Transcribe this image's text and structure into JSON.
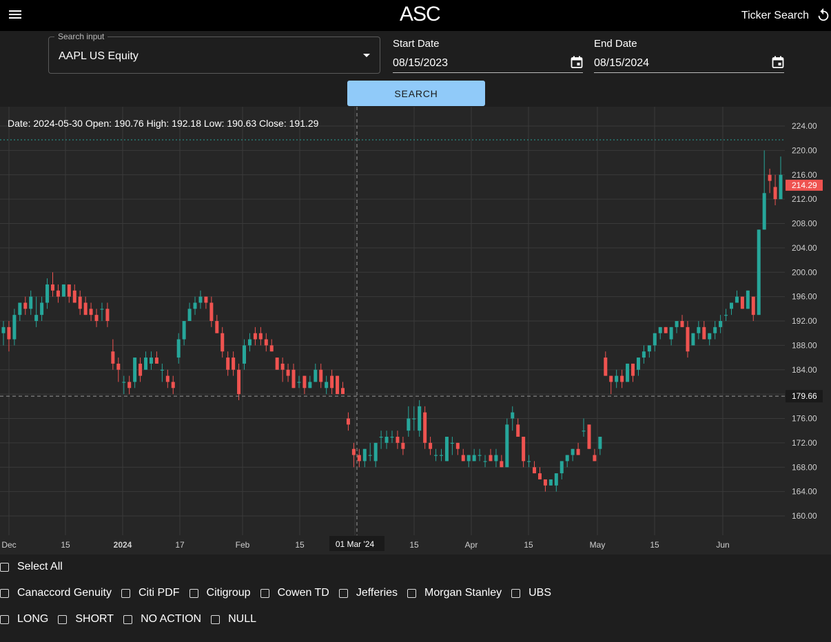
{
  "header": {
    "logo": "ASC",
    "ticker_search": "Ticker Search"
  },
  "form": {
    "search_legend": "Search input",
    "search_value": "AAPL US Equity",
    "start_label": "Start Date",
    "start_value": "08/15/2023",
    "end_label": "End Date",
    "end_value": "08/15/2024",
    "search_button": "SEARCH"
  },
  "chart_data": {
    "type": "candlestick",
    "ohlc_readout": "Date: 2024-05-30 Open: 190.76 High: 192.18 Low: 190.63 Close: 191.29",
    "ylim": [
      158,
      226
    ],
    "y_ticks": [
      "224.00",
      "220.00",
      "216.00",
      "212.00",
      "208.00",
      "204.00",
      "200.00",
      "196.00",
      "192.00",
      "188.00",
      "184.00",
      "180.00",
      "176.00",
      "172.00",
      "168.00",
      "164.00",
      "160.00"
    ],
    "x_ticks": [
      "Dec",
      "15",
      "2024",
      "17",
      "Feb",
      "15",
      "01 Mar '24",
      "15",
      "Apr",
      "15",
      "May",
      "15",
      "Jun"
    ],
    "crosshair_date_label": "01 Mar '24",
    "crosshair_price": "179.66",
    "last_price": "214.29",
    "colors": {
      "up": "#26a69a",
      "down": "#ef5350",
      "price_badge": "#ef5350"
    },
    "candles": [
      {
        "o": 190,
        "h": 192,
        "l": 188,
        "c": 191
      },
      {
        "o": 191,
        "h": 192,
        "l": 187,
        "c": 189
      },
      {
        "o": 189,
        "h": 194,
        "l": 188,
        "c": 193
      },
      {
        "o": 193,
        "h": 195,
        "l": 192,
        "c": 195
      },
      {
        "o": 195,
        "h": 196,
        "l": 193,
        "c": 194
      },
      {
        "o": 194,
        "h": 197,
        "l": 193,
        "c": 196
      },
      {
        "o": 192,
        "h": 196,
        "l": 191,
        "c": 193
      },
      {
        "o": 193,
        "h": 196,
        "l": 192,
        "c": 195
      },
      {
        "o": 195,
        "h": 199,
        "l": 194,
        "c": 198
      },
      {
        "o": 198,
        "h": 200,
        "l": 196,
        "c": 197
      },
      {
        "o": 197,
        "h": 198,
        "l": 195,
        "c": 196
      },
      {
        "o": 196,
        "h": 198,
        "l": 196,
        "c": 198
      },
      {
        "o": 198,
        "h": 198,
        "l": 195,
        "c": 196
      },
      {
        "o": 197,
        "h": 198,
        "l": 195,
        "c": 195
      },
      {
        "o": 196,
        "h": 197,
        "l": 193,
        "c": 194
      },
      {
        "o": 195,
        "h": 196,
        "l": 193,
        "c": 193
      },
      {
        "o": 194,
        "h": 195,
        "l": 192,
        "c": 193
      },
      {
        "o": 193,
        "h": 194,
        "l": 191,
        "c": 192
      },
      {
        "o": 194,
        "h": 195,
        "l": 192,
        "c": 194
      },
      {
        "o": 194,
        "h": 195,
        "l": 191,
        "c": 192
      },
      {
        "o": 187,
        "h": 189,
        "l": 184,
        "c": 185
      },
      {
        "o": 185,
        "h": 186,
        "l": 182,
        "c": 184
      },
      {
        "o": 182,
        "h": 183,
        "l": 180,
        "c": 182
      },
      {
        "o": 182,
        "h": 183,
        "l": 180,
        "c": 181
      },
      {
        "o": 182,
        "h": 186,
        "l": 181,
        "c": 186
      },
      {
        "o": 185,
        "h": 186,
        "l": 182,
        "c": 183
      },
      {
        "o": 184,
        "h": 187,
        "l": 184,
        "c": 186
      },
      {
        "o": 185,
        "h": 187,
        "l": 184,
        "c": 186
      },
      {
        "o": 186,
        "h": 187,
        "l": 185,
        "c": 185
      },
      {
        "o": 184,
        "h": 185,
        "l": 182,
        "c": 184
      },
      {
        "o": 183,
        "h": 184,
        "l": 181,
        "c": 182
      },
      {
        "o": 182,
        "h": 183,
        "l": 180,
        "c": 181
      },
      {
        "o": 186,
        "h": 190,
        "l": 185,
        "c": 189
      },
      {
        "o": 189,
        "h": 192,
        "l": 188,
        "c": 192
      },
      {
        "o": 192,
        "h": 195,
        "l": 192,
        "c": 194
      },
      {
        "o": 194,
        "h": 196,
        "l": 193,
        "c": 195
      },
      {
        "o": 195,
        "h": 197,
        "l": 194,
        "c": 196
      },
      {
        "o": 196,
        "h": 196,
        "l": 194,
        "c": 195
      },
      {
        "o": 195,
        "h": 196,
        "l": 191,
        "c": 192
      },
      {
        "o": 192,
        "h": 193,
        "l": 190,
        "c": 190
      },
      {
        "o": 190,
        "h": 191,
        "l": 186,
        "c": 187
      },
      {
        "o": 186,
        "h": 187,
        "l": 183,
        "c": 184
      },
      {
        "o": 186,
        "h": 187,
        "l": 183,
        "c": 184
      },
      {
        "o": 184,
        "h": 185,
        "l": 179,
        "c": 180
      },
      {
        "o": 185,
        "h": 189,
        "l": 184,
        "c": 188
      },
      {
        "o": 188,
        "h": 190,
        "l": 187,
        "c": 189
      },
      {
        "o": 190,
        "h": 191,
        "l": 188,
        "c": 189
      },
      {
        "o": 190,
        "h": 191,
        "l": 188,
        "c": 189
      },
      {
        "o": 189,
        "h": 190,
        "l": 187,
        "c": 188
      },
      {
        "o": 188,
        "h": 189,
        "l": 187,
        "c": 187
      },
      {
        "o": 186,
        "h": 186,
        "l": 184,
        "c": 184
      },
      {
        "o": 185,
        "h": 186,
        "l": 182,
        "c": 184
      },
      {
        "o": 184,
        "h": 185,
        "l": 182,
        "c": 183
      },
      {
        "o": 184,
        "h": 185,
        "l": 181,
        "c": 181
      },
      {
        "o": 182,
        "h": 183,
        "l": 181,
        "c": 182
      },
      {
        "o": 183,
        "h": 183,
        "l": 180,
        "c": 181
      },
      {
        "o": 181,
        "h": 183,
        "l": 181,
        "c": 182
      },
      {
        "o": 182,
        "h": 185,
        "l": 182,
        "c": 184
      },
      {
        "o": 184,
        "h": 185,
        "l": 181,
        "c": 182
      },
      {
        "o": 181,
        "h": 183,
        "l": 180,
        "c": 182
      },
      {
        "o": 183,
        "h": 184,
        "l": 180,
        "c": 181
      },
      {
        "o": 183,
        "h": 183,
        "l": 180,
        "c": 180
      },
      {
        "o": 181,
        "h": 182,
        "l": 180,
        "c": 180
      },
      {
        "o": 176,
        "h": 177,
        "l": 174,
        "c": 175
      },
      {
        "o": 171,
        "h": 172,
        "l": 168,
        "c": 170
      },
      {
        "o": 170,
        "h": 171,
        "l": 168,
        "c": 169
      },
      {
        "o": 169,
        "h": 171,
        "l": 168,
        "c": 171
      },
      {
        "o": 170,
        "h": 172,
        "l": 169,
        "c": 170
      },
      {
        "o": 169,
        "h": 172,
        "l": 168,
        "c": 172
      },
      {
        "o": 173,
        "h": 174,
        "l": 171,
        "c": 173
      },
      {
        "o": 172,
        "h": 174,
        "l": 171,
        "c": 173
      },
      {
        "o": 173,
        "h": 174,
        "l": 172,
        "c": 173
      },
      {
        "o": 173,
        "h": 174,
        "l": 171,
        "c": 172
      },
      {
        "o": 172,
        "h": 173,
        "l": 170,
        "c": 171
      },
      {
        "o": 174,
        "h": 178,
        "l": 173,
        "c": 176
      },
      {
        "o": 176,
        "h": 178,
        "l": 174,
        "c": 176
      },
      {
        "o": 174,
        "h": 179,
        "l": 173,
        "c": 178
      },
      {
        "o": 177,
        "h": 178,
        "l": 171,
        "c": 172
      },
      {
        "o": 172,
        "h": 173,
        "l": 170,
        "c": 171
      },
      {
        "o": 170,
        "h": 171,
        "l": 169,
        "c": 170
      },
      {
        "o": 170,
        "h": 171,
        "l": 169,
        "c": 170
      },
      {
        "o": 169,
        "h": 173,
        "l": 169,
        "c": 173
      },
      {
        "o": 172,
        "h": 173,
        "l": 170,
        "c": 172
      },
      {
        "o": 172,
        "h": 172,
        "l": 170,
        "c": 171
      },
      {
        "o": 170,
        "h": 171,
        "l": 169,
        "c": 169
      },
      {
        "o": 169,
        "h": 170,
        "l": 168,
        "c": 170
      },
      {
        "o": 169,
        "h": 171,
        "l": 169,
        "c": 170
      },
      {
        "o": 170,
        "h": 171,
        "l": 169,
        "c": 170
      },
      {
        "o": 169,
        "h": 170,
        "l": 168,
        "c": 169
      },
      {
        "o": 170,
        "h": 171,
        "l": 169,
        "c": 169
      },
      {
        "o": 169,
        "h": 171,
        "l": 168,
        "c": 170
      },
      {
        "o": 169,
        "h": 170,
        "l": 168,
        "c": 168
      },
      {
        "o": 168,
        "h": 176,
        "l": 168,
        "c": 175
      },
      {
        "o": 176,
        "h": 178,
        "l": 174,
        "c": 177
      },
      {
        "o": 175,
        "h": 176,
        "l": 173,
        "c": 173
      },
      {
        "o": 173,
        "h": 173,
        "l": 168,
        "c": 169
      },
      {
        "o": 169,
        "h": 170,
        "l": 168,
        "c": 169
      },
      {
        "o": 168,
        "h": 169,
        "l": 167,
        "c": 167
      },
      {
        "o": 167,
        "h": 168,
        "l": 166,
        "c": 166
      },
      {
        "o": 166,
        "h": 166,
        "l": 164,
        "c": 165
      },
      {
        "o": 165,
        "h": 166,
        "l": 165,
        "c": 166
      },
      {
        "o": 165,
        "h": 167,
        "l": 164,
        "c": 167
      },
      {
        "o": 167,
        "h": 169,
        "l": 166,
        "c": 169
      },
      {
        "o": 169,
        "h": 170,
        "l": 168,
        "c": 170
      },
      {
        "o": 170,
        "h": 171,
        "l": 169,
        "c": 171
      },
      {
        "o": 171,
        "h": 172,
        "l": 170,
        "c": 170
      },
      {
        "o": 174,
        "h": 176,
        "l": 173,
        "c": 174
      },
      {
        "o": 175,
        "h": 175,
        "l": 171,
        "c": 171
      },
      {
        "o": 170,
        "h": 171,
        "l": 169,
        "c": 169
      },
      {
        "o": 171,
        "h": 173,
        "l": 170,
        "c": 173
      },
      {
        "o": 186,
        "h": 187,
        "l": 183,
        "c": 183
      },
      {
        "o": 183,
        "h": 183,
        "l": 180,
        "c": 182
      },
      {
        "o": 182,
        "h": 184,
        "l": 181,
        "c": 183
      },
      {
        "o": 183,
        "h": 184,
        "l": 181,
        "c": 182
      },
      {
        "o": 182,
        "h": 185,
        "l": 182,
        "c": 185
      },
      {
        "o": 185,
        "h": 185,
        "l": 182,
        "c": 183
      },
      {
        "o": 184,
        "h": 186,
        "l": 183,
        "c": 186
      },
      {
        "o": 186,
        "h": 188,
        "l": 185,
        "c": 187
      },
      {
        "o": 187,
        "h": 188,
        "l": 186,
        "c": 188
      },
      {
        "o": 188,
        "h": 190,
        "l": 187,
        "c": 190
      },
      {
        "o": 190,
        "h": 191,
        "l": 189,
        "c": 191
      },
      {
        "o": 191,
        "h": 191,
        "l": 190,
        "c": 190
      },
      {
        "o": 189,
        "h": 191,
        "l": 188,
        "c": 191
      },
      {
        "o": 191,
        "h": 192,
        "l": 190,
        "c": 192
      },
      {
        "o": 192,
        "h": 193,
        "l": 191,
        "c": 191
      },
      {
        "o": 191,
        "h": 192,
        "l": 186,
        "c": 187
      },
      {
        "o": 188,
        "h": 190,
        "l": 188,
        "c": 190
      },
      {
        "o": 190,
        "h": 192,
        "l": 189,
        "c": 191
      },
      {
        "o": 191,
        "h": 192,
        "l": 189,
        "c": 189
      },
      {
        "o": 189,
        "h": 190,
        "l": 188,
        "c": 190
      },
      {
        "o": 190,
        "h": 192,
        "l": 189,
        "c": 191
      },
      {
        "o": 191,
        "h": 193,
        "l": 190,
        "c": 192
      },
      {
        "o": 193,
        "h": 194,
        "l": 192,
        "c": 193
      },
      {
        "o": 194,
        "h": 195,
        "l": 193,
        "c": 195
      },
      {
        "o": 195,
        "h": 197,
        "l": 195,
        "c": 196
      },
      {
        "o": 196,
        "h": 196,
        "l": 194,
        "c": 194
      },
      {
        "o": 194,
        "h": 197,
        "l": 194,
        "c": 197
      },
      {
        "o": 196,
        "h": 196,
        "l": 192,
        "c": 193
      },
      {
        "o": 193,
        "h": 207,
        "l": 193,
        "c": 207
      },
      {
        "o": 207,
        "h": 220,
        "l": 207,
        "c": 213
      },
      {
        "o": 216,
        "h": 217,
        "l": 213,
        "c": 215
      },
      {
        "o": 214,
        "h": 216,
        "l": 211,
        "c": 212
      },
      {
        "o": 212,
        "h": 219,
        "l": 212,
        "c": 216
      }
    ]
  },
  "filters": {
    "select_all": "Select All",
    "brokers": [
      "Canaccord Genuity",
      "Citi PDF",
      "Citigroup",
      "Cowen TD",
      "Jefferies",
      "Morgan Stanley",
      "UBS"
    ],
    "actions": [
      "LONG",
      "SHORT",
      "NO ACTION",
      "NULL"
    ]
  }
}
